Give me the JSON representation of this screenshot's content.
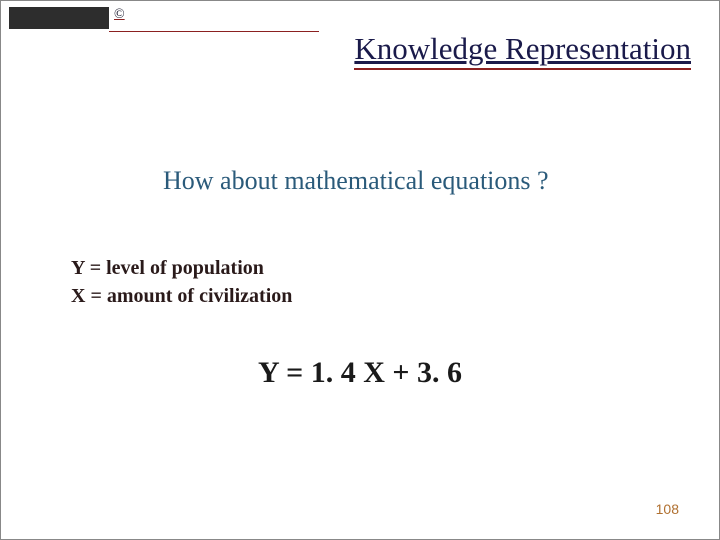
{
  "header": {
    "copyright_symbol": "©",
    "title": "Knowledge Representation"
  },
  "content": {
    "subtitle": "How about mathematical equations ?",
    "def_y": "Y = level of population",
    "def_x": "X = amount of civilization",
    "equation": "Y = 1. 4 X + 3. 6"
  },
  "footer": {
    "page_number": "108"
  },
  "style": {
    "bg_color": "#ffffff",
    "accent_color": "#8b2020",
    "title_color": "#1a1a4a",
    "subtitle_color": "#2a5a7a",
    "body_color": "#2a1a1a",
    "page_num_color": "#b07030",
    "bar_color": "#2d2d2d",
    "title_fontsize": 31,
    "subtitle_fontsize": 26,
    "body_fontsize": 20,
    "equation_fontsize": 30
  }
}
